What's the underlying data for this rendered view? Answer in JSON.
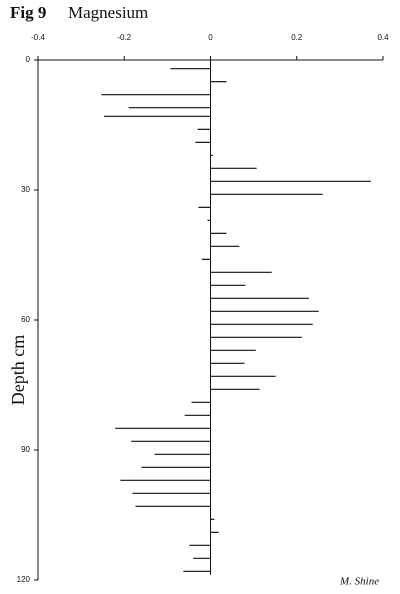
{
  "chart_data": {
    "type": "bar",
    "orientation": "horizontal",
    "title": "Fig 9",
    "subtitle": "Magnesium",
    "y_label": "Depth cm",
    "annotation": "M. Shine",
    "y": [
      2,
      5,
      8,
      11,
      13,
      16,
      19,
      22,
      25,
      28,
      31,
      34,
      37,
      40,
      43,
      46,
      49,
      52,
      55,
      58,
      61,
      64,
      67,
      70,
      73,
      76,
      79,
      82,
      85,
      88,
      91,
      94,
      97,
      100,
      103,
      106,
      109,
      112,
      115,
      118
    ],
    "values": [
      -0.093,
      0.037,
      -0.253,
      -0.19,
      -0.247,
      -0.03,
      -0.035,
      0.005,
      0.107,
      0.372,
      0.26,
      -0.028,
      -0.007,
      0.037,
      0.067,
      -0.02,
      0.142,
      0.081,
      0.228,
      0.251,
      0.237,
      0.212,
      0.105,
      0.079,
      0.151,
      0.114,
      -0.044,
      -0.06,
      -0.221,
      -0.184,
      -0.13,
      -0.16,
      -0.209,
      -0.181,
      -0.174,
      0.009,
      0.019,
      -0.049,
      -0.04,
      -0.063
    ],
    "color": "#111111",
    "xlim": [
      -0.4,
      0.4
    ],
    "xticks": [
      -0.4,
      -0.2,
      0,
      0.2,
      0.4
    ],
    "ylim": [
      0,
      120
    ],
    "yticks": [
      0,
      30,
      60,
      90,
      120
    ]
  }
}
